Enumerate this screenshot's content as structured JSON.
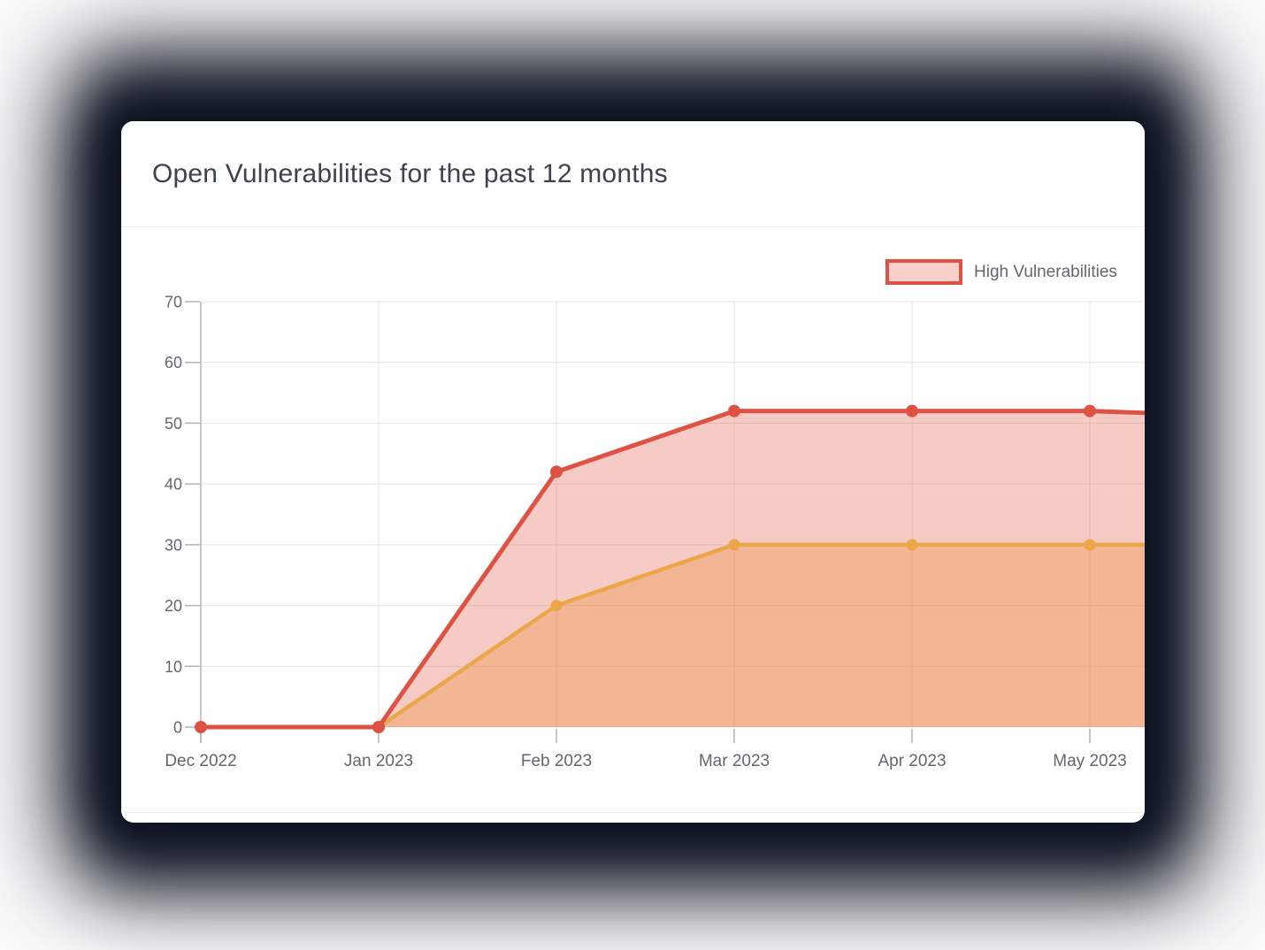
{
  "header": {
    "title": "Open Vulnerabilities for the past 12 months"
  },
  "legend": {
    "items": [
      {
        "id": "high",
        "label": "High Vulnerabilities",
        "swatch_fill": "#f8cfc9",
        "swatch_border": "#dd5243"
      }
    ]
  },
  "y_axis": {
    "tick_labels": [
      "0",
      "10",
      "20",
      "30",
      "40",
      "50",
      "60",
      "70"
    ]
  },
  "x_axis": {
    "labels": [
      "Dec 2022",
      "Jan 2023",
      "Feb 2023",
      "Mar 2023",
      "Apr 2023",
      "May 2023"
    ]
  },
  "chart_data": {
    "type": "area",
    "title": "Open Vulnerabilities for the past 12 months",
    "categories": [
      "Dec 2022",
      "Jan 2023",
      "Feb 2023",
      "Mar 2023",
      "Apr 2023",
      "May 2023",
      ""
    ],
    "series": [
      {
        "id": "high-vulnerabilities",
        "name": "High Vulnerabilities",
        "color": "#dd5243",
        "fill": "rgba(224,80,62,0.30)",
        "values": [
          0,
          0,
          42,
          52,
          52,
          52,
          51
        ]
      },
      {
        "id": "orange-series-legend-clipped",
        "name": "",
        "color": "#eba649",
        "fill": "rgba(235,155,80,0.42)",
        "values": [
          0,
          0,
          20,
          30,
          30,
          30,
          30
        ]
      }
    ],
    "ylim": [
      0,
      70
    ],
    "ytick_step": 10,
    "grid": true,
    "legend_position": "top-right",
    "clipped_right": true
  },
  "colors": {
    "card_bg": "#ffffff",
    "shadow": "#0d1321",
    "title_text": "#3c434e",
    "axis_text": "#63676d",
    "grid_line": "#e4e4e4",
    "axis_line": "#b3b3b3"
  }
}
